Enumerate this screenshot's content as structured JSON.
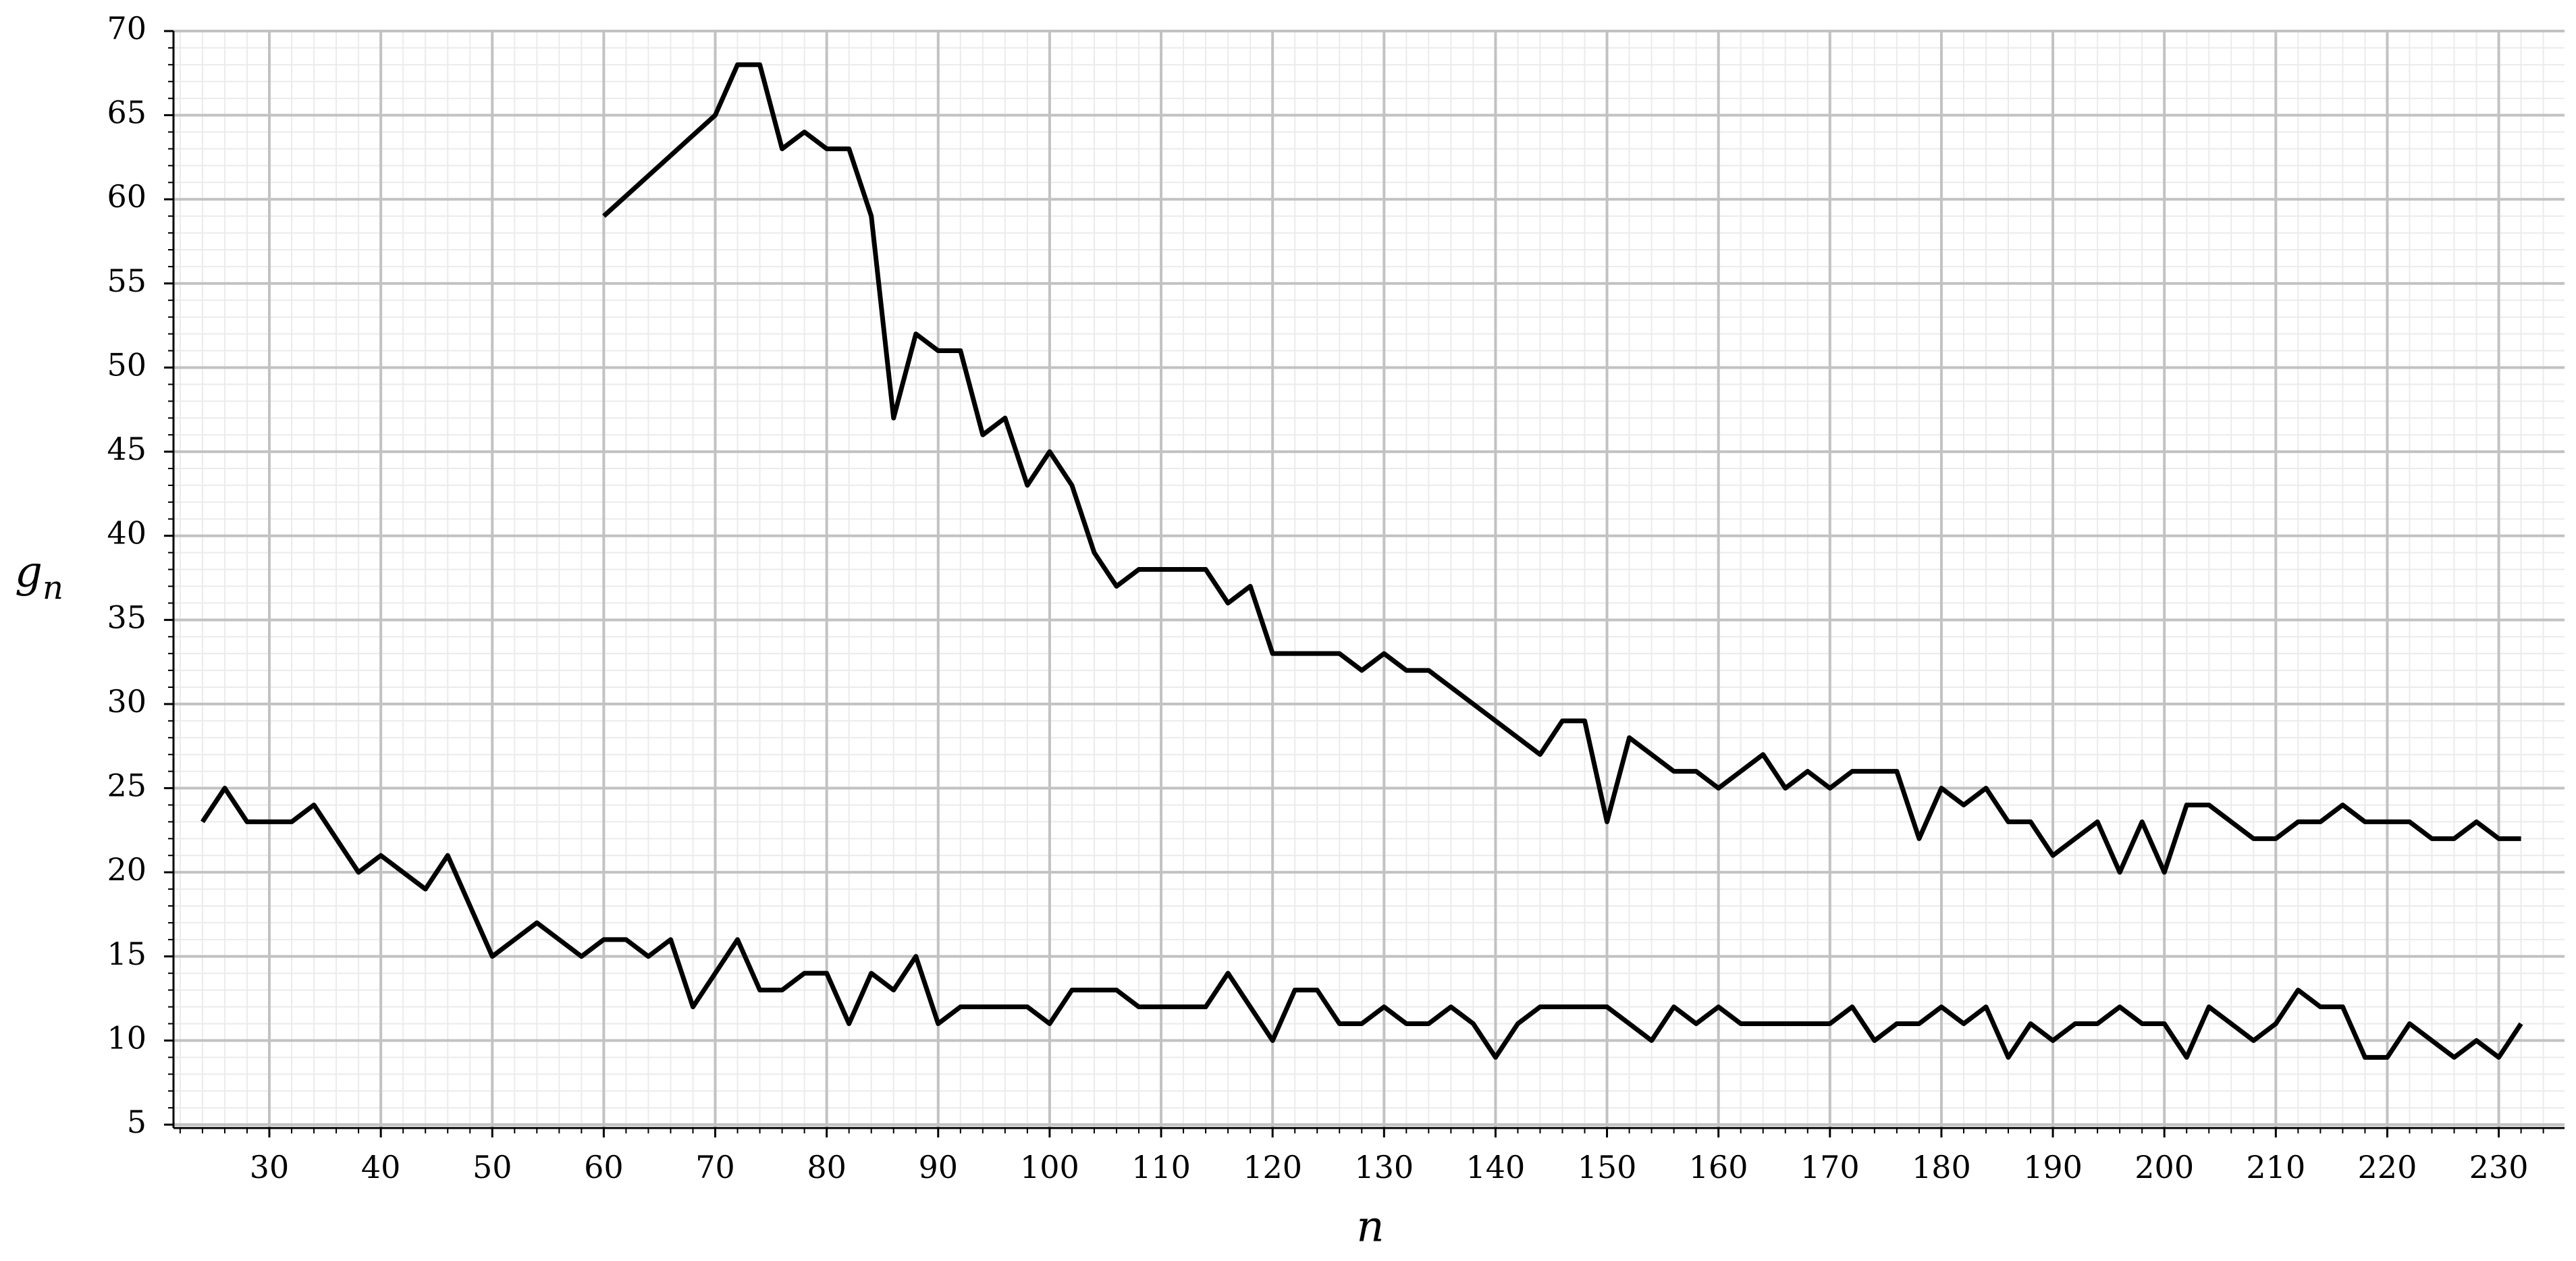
{
  "chart_data": {
    "type": "line",
    "xlabel": "n",
    "ylabel": {
      "text": "g",
      "subscript": "n"
    },
    "xlim": [
      21.4,
      235.9
    ],
    "ylim": [
      4.8,
      70
    ],
    "xticks": [
      30,
      40,
      50,
      60,
      70,
      80,
      90,
      100,
      110,
      120,
      130,
      140,
      150,
      160,
      170,
      180,
      190,
      200,
      210,
      220,
      230
    ],
    "yticks": [
      5,
      10,
      15,
      20,
      25,
      30,
      35,
      40,
      45,
      50,
      55,
      60,
      65,
      70
    ],
    "grid": true,
    "minor_grid": true,
    "series": [
      {
        "color": "#000000",
        "x": [
          60,
          70,
          72,
          74,
          76,
          78,
          80,
          82,
          84,
          86,
          88,
          90,
          92,
          94,
          96,
          98,
          100,
          102,
          104,
          106,
          108,
          110,
          112,
          114,
          116,
          118,
          120,
          122,
          124,
          126,
          128,
          130,
          132,
          134,
          144,
          146,
          148,
          150,
          152,
          154,
          156,
          158,
          160,
          162,
          164,
          166,
          168,
          170,
          172,
          174,
          176,
          178,
          180,
          182,
          184,
          186,
          188,
          190,
          192,
          194,
          196,
          198,
          200,
          202,
          204,
          206,
          208,
          210,
          212,
          214,
          216,
          218,
          220,
          222,
          224,
          226,
          228,
          230,
          232
        ],
        "values": [
          59,
          65,
          68,
          68,
          63,
          64,
          63,
          63,
          59,
          47,
          52,
          51,
          51,
          46,
          47,
          43,
          45,
          43,
          39,
          37,
          38,
          38,
          38,
          38,
          36,
          37,
          33,
          33,
          33,
          33,
          32,
          33,
          32,
          32,
          27,
          29,
          29,
          23,
          28,
          27,
          26,
          26,
          25,
          26,
          27,
          25,
          26,
          25,
          26,
          26,
          26,
          22,
          25,
          24,
          25,
          23,
          23,
          21,
          22,
          23,
          20,
          23,
          20,
          24,
          24,
          23,
          22,
          22,
          23,
          23,
          24,
          23,
          23,
          23,
          22,
          22,
          23,
          22,
          22
        ]
      },
      {
        "color": "#000000",
        "x": [
          24,
          26,
          28,
          30,
          32,
          34,
          36,
          38,
          40,
          42,
          44,
          46,
          48,
          50,
          52,
          54,
          56,
          58,
          60,
          62,
          64,
          66,
          68,
          70,
          72,
          74,
          76,
          78,
          80,
          82,
          84,
          86,
          88,
          90,
          92,
          94,
          96,
          98,
          100,
          102,
          104,
          106,
          108,
          110,
          112,
          114,
          116,
          118,
          120,
          122,
          124,
          126,
          128,
          130,
          132,
          134,
          136,
          138,
          140,
          142,
          144,
          146,
          148,
          150,
          152,
          154,
          156,
          158,
          160,
          162,
          164,
          166,
          168,
          170,
          172,
          174,
          176,
          178,
          180,
          182,
          184,
          186,
          188,
          190,
          192,
          194,
          196,
          198,
          200,
          202,
          204,
          206,
          208,
          210,
          212,
          214,
          216,
          218,
          220,
          222,
          224,
          226,
          228,
          230,
          232
        ],
        "values": [
          23,
          25,
          23,
          23,
          23,
          24,
          22,
          20,
          21,
          20,
          19,
          21,
          18,
          15,
          16,
          17,
          16,
          15,
          16,
          16,
          15,
          16,
          12,
          14,
          16,
          13,
          13,
          14,
          14,
          11,
          14,
          13,
          15,
          11,
          12,
          12,
          12,
          12,
          11,
          13,
          13,
          13,
          12,
          12,
          12,
          12,
          14,
          12,
          10,
          13,
          13,
          11,
          11,
          12,
          11,
          11,
          12,
          11,
          9,
          11,
          12,
          12,
          12,
          12,
          11,
          10,
          12,
          11,
          12,
          11,
          11,
          11,
          11,
          11,
          12,
          10,
          11,
          11,
          12,
          11,
          12,
          9,
          11,
          10,
          11,
          11,
          12,
          11,
          11,
          9,
          12,
          11,
          10,
          11,
          13,
          12,
          12,
          9,
          9,
          11,
          10,
          9,
          10,
          9,
          11
        ]
      }
    ]
  }
}
